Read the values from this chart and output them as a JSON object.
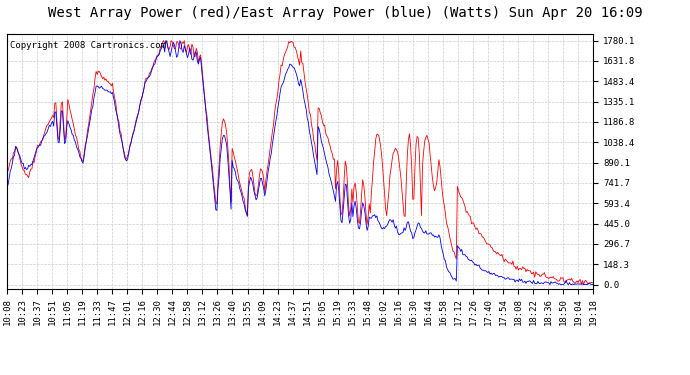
{
  "title": "West Array Power (red)/East Array Power (blue) (Watts) Sun Apr 20 16:09",
  "copyright": "Copyright 2008 Cartronics.com",
  "ytick_labels": [
    "1780.1",
    "1631.8",
    "1483.4",
    "1335.1",
    "1186.8",
    "1038.4",
    "890.1",
    "741.7",
    "593.4",
    "445.0",
    "296.7",
    "148.3",
    "0.0"
  ],
  "ytick_values": [
    1780.1,
    1631.8,
    1483.4,
    1335.1,
    1186.8,
    1038.4,
    890.1,
    741.7,
    593.4,
    445.0,
    296.7,
    148.3,
    0.0
  ],
  "ymax": 1830.0,
  "ymin": -30.0,
  "bg_color": "#ffffff",
  "plot_bg_color": "#ffffff",
  "grid_color": "#cccccc",
  "red_color": "#ff0000",
  "blue_color": "#0000ff",
  "title_fontsize": 10,
  "copyright_fontsize": 6.5,
  "tick_fontsize": 6.5,
  "xtick_labels": [
    "10:08",
    "10:23",
    "10:37",
    "10:51",
    "11:05",
    "11:19",
    "11:33",
    "11:47",
    "12:01",
    "12:16",
    "12:30",
    "12:44",
    "12:58",
    "13:12",
    "13:26",
    "13:40",
    "13:55",
    "14:09",
    "14:23",
    "14:37",
    "14:51",
    "15:05",
    "15:19",
    "15:33",
    "15:48",
    "16:02",
    "16:16",
    "16:30",
    "16:44",
    "16:58",
    "17:12",
    "17:26",
    "17:40",
    "17:54",
    "18:08",
    "18:22",
    "18:36",
    "18:50",
    "19:04",
    "19:18"
  ]
}
